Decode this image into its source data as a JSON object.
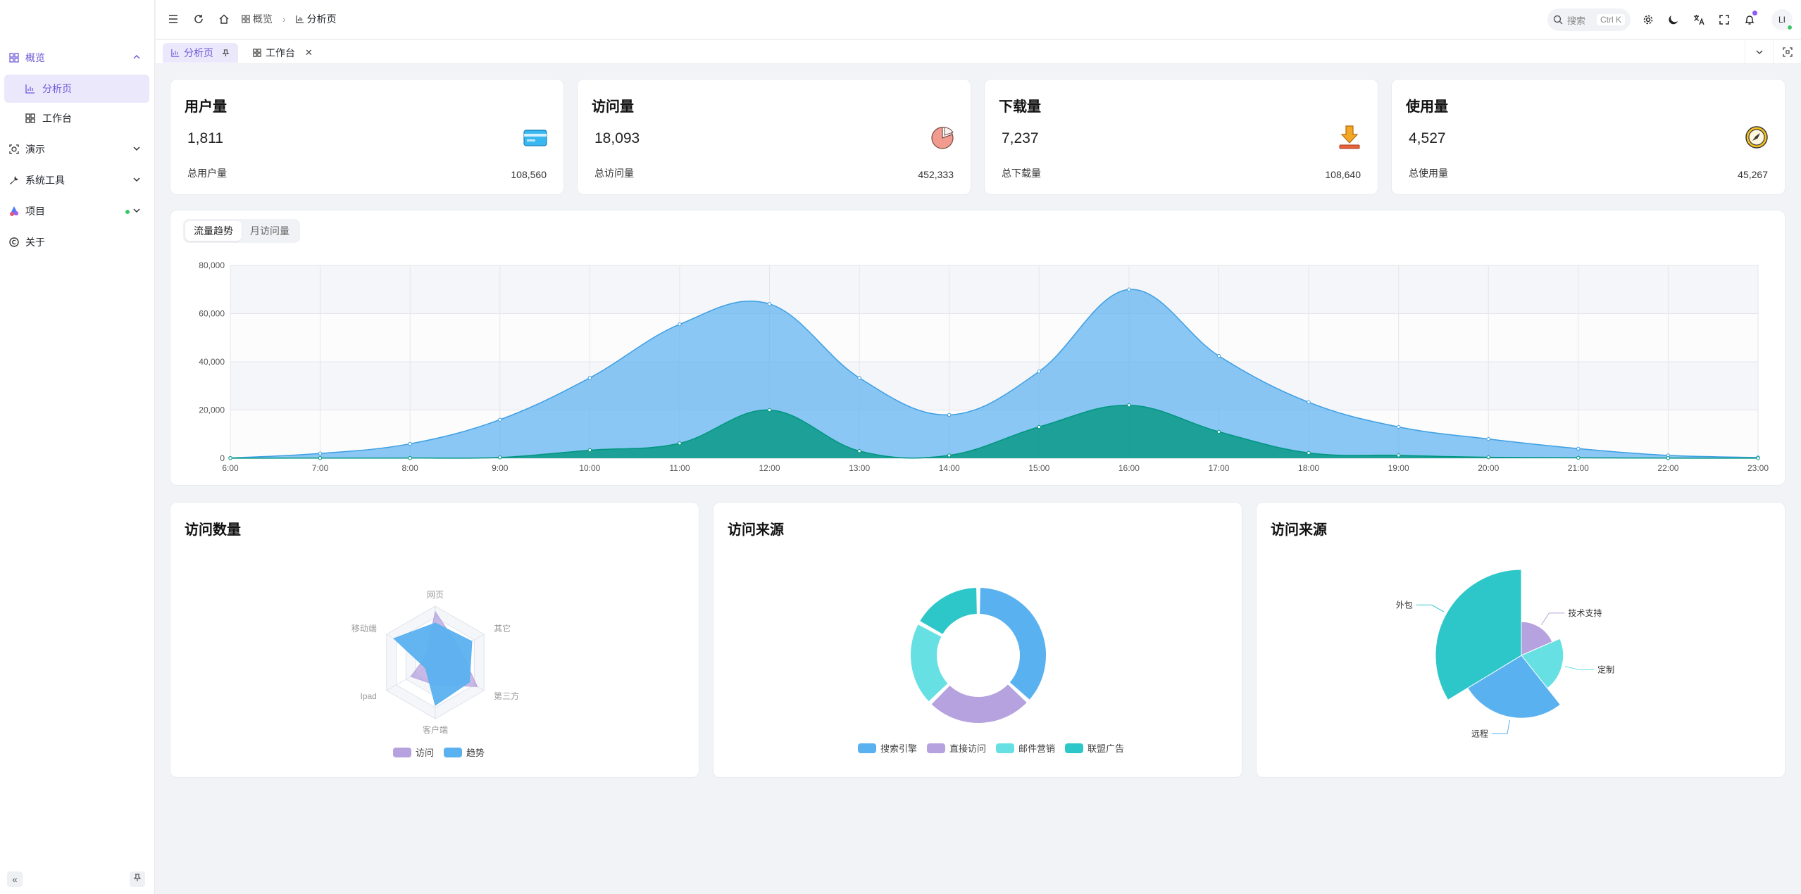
{
  "sidebar": {
    "groups": [
      {
        "label": "概览",
        "icon": "dashboard-icon",
        "expanded": true,
        "children": [
          {
            "label": "分析页",
            "icon": "chart-icon",
            "active": true
          },
          {
            "label": "工作台",
            "icon": "workspace-icon",
            "active": false
          }
        ]
      },
      {
        "label": "演示",
        "icon": "demo-icon"
      },
      {
        "label": "系统工具",
        "icon": "wrench-icon"
      },
      {
        "label": "项目",
        "icon": "project-icon"
      },
      {
        "label": "关于",
        "icon": "copyright-icon"
      }
    ]
  },
  "header": {
    "breadcrumb": [
      "概览",
      "分析页"
    ],
    "search_label": "搜索",
    "search_shortcut": "Ctrl K",
    "avatar_text": "LI"
  },
  "tabs": [
    {
      "label": "分析页",
      "active": true
    },
    {
      "label": "工作台",
      "active": false
    }
  ],
  "stats": [
    {
      "title": "用户量",
      "value": "1,811",
      "foot_label": "总用户量",
      "foot_value": "108,560",
      "icon": "card-icon"
    },
    {
      "title": "访问量",
      "value": "18,093",
      "foot_label": "总访问量",
      "foot_value": "452,333",
      "icon": "pie-icon"
    },
    {
      "title": "下载量",
      "value": "7,237",
      "foot_label": "总下载量",
      "foot_value": "108,640",
      "icon": "download-icon"
    },
    {
      "title": "使用量",
      "value": "4,527",
      "foot_label": "总使用量",
      "foot_value": "45,267",
      "icon": "compass-icon"
    }
  ],
  "trend": {
    "segments": [
      "流量趋势",
      "月访问量"
    ],
    "active_segment": 0
  },
  "panels": {
    "radar_title": "访问数量",
    "donut_title": "访问来源",
    "rose_title": "访问来源"
  },
  "colors": {
    "accent": "#6f5ad8",
    "blue": "#5ab1ef",
    "teal": "#2ec7c9",
    "purple": "#b6a2de",
    "cyan": "#67e0e3",
    "area_teal": "#019680"
  },
  "chart_data": [
    {
      "type": "area",
      "x": [
        "6:00",
        "7:00",
        "8:00",
        "9:00",
        "10:00",
        "11:00",
        "12:00",
        "13:00",
        "14:00",
        "15:00",
        "16:00",
        "17:00",
        "18:00",
        "19:00",
        "20:00",
        "21:00",
        "22:00",
        "23:00"
      ],
      "yticks": [
        "0",
        "20,000",
        "40,000",
        "60,000",
        "80,000"
      ],
      "ylim": [
        0,
        80000
      ],
      "grid": true,
      "series": [
        {
          "values": [
            111,
            2000,
            6000,
            16000,
            33333,
            55555,
            64000,
            33333,
            18000,
            36000,
            70000,
            42444,
            23222,
            13000,
            8000,
            4000,
            1200,
            333
          ]
        },
        {
          "values": [
            33,
            66,
            88,
            333,
            3333,
            6200,
            20000,
            3000,
            1200,
            13000,
            22000,
            11000,
            2221,
            1201,
            390,
            198,
            60,
            30
          ]
        }
      ]
    },
    {
      "type": "radar",
      "indicators": [
        "网页",
        "其它",
        "第三方",
        "客户端",
        "Ipad",
        "移动端"
      ],
      "max": 100,
      "series": [
        {
          "name": "访问",
          "values": [
            90,
            50,
            86,
            40,
            50,
            20
          ]
        },
        {
          "name": "趋势",
          "values": [
            70,
            75,
            70,
            76,
            20,
            85
          ]
        }
      ]
    },
    {
      "type": "pie",
      "variant": "donut",
      "legend": "bottom",
      "series": [
        {
          "name": "搜索引擎",
          "value": 1048
        },
        {
          "name": "直接访问",
          "value": 735
        },
        {
          "name": "邮件营销",
          "value": 580
        },
        {
          "name": "联盟广告",
          "value": 484
        }
      ]
    },
    {
      "type": "pie",
      "variant": "rose",
      "series": [
        {
          "name": "外包",
          "value": 500
        },
        {
          "name": "定制",
          "value": 310
        },
        {
          "name": "技术支持",
          "value": 274
        },
        {
          "name": "远程",
          "value": 400
        }
      ]
    }
  ]
}
